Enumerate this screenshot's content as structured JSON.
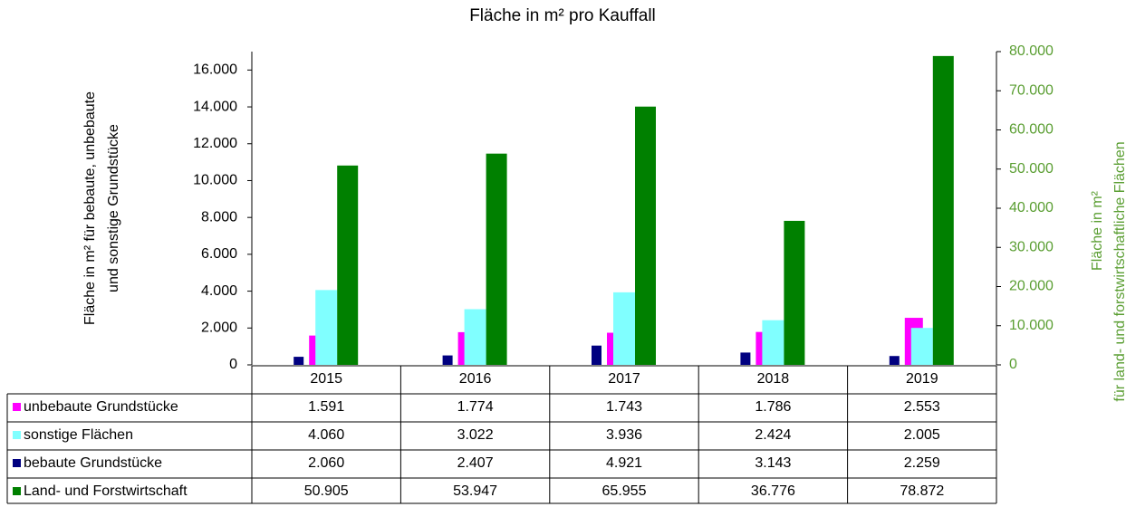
{
  "chart_data": {
    "type": "bar",
    "title": "Fläche in m² pro Kauffall",
    "y_label": [
      "Fläche in m² für bebaute, unbebaute",
      "und sonstige Grundstücke"
    ],
    "y2_label": [
      "Fläche in m²",
      "für  land- und forstwirtschaftliche  Flächen"
    ],
    "categories": [
      "2015",
      "2016",
      "2017",
      "2018",
      "2019"
    ],
    "series": [
      {
        "name": "unbebaute Grundstücke",
        "color": "#ff00ff",
        "values": [
          1591,
          1774,
          1743,
          1786,
          2553
        ],
        "value_labels": [
          "1.591",
          "1.774",
          "1.743",
          "1.786",
          "2.553"
        ]
      },
      {
        "name": "sonstige Flächen",
        "color": "#80ffff",
        "values": [
          4060,
          3022,
          3936,
          2424,
          2005
        ],
        "value_labels": [
          "4.060",
          "3.022",
          "3.936",
          "2.424",
          "2.005"
        ]
      },
      {
        "name": "bebaute Grundstücke",
        "color": "#000080",
        "axis": "y2",
        "values": [
          2060,
          2407,
          4921,
          3143,
          2259
        ],
        "value_labels": [
          "2.060",
          "2.407",
          "4.921",
          "3.143",
          "2.259"
        ]
      },
      {
        "name": "Land- und Forstwirtschaft",
        "color": "#008000",
        "axis": "y2",
        "values": [
          50905,
          53947,
          65955,
          36776,
          78872
        ],
        "value_labels": [
          "50.905",
          "53.947",
          "65.955",
          "36.776",
          "78.872"
        ]
      }
    ],
    "ylim": [
      0,
      17000
    ],
    "yticks": [
      0,
      {
        "value": 2000,
        "label": "2.000"
      },
      {
        "value": 4000,
        "label": "4.000"
      },
      {
        "value": 6000,
        "label": "6.000"
      },
      {
        "value": 8000,
        "label": "8.000"
      },
      {
        "value": 10000,
        "label": "10.000"
      },
      {
        "value": 12000,
        "label": "12.000"
      },
      {
        "value": 14000,
        "label": "14.000"
      },
      {
        "value": 16000,
        "label": "16.000"
      }
    ],
    "y2lim": [
      0,
      80000
    ],
    "y2ticks": [
      0,
      {
        "value": 10000,
        "label": "10.000"
      },
      {
        "value": 20000,
        "label": "20.000"
      },
      {
        "value": 30000,
        "label": "30.000"
      },
      {
        "value": 40000,
        "label": "40.000"
      },
      {
        "value": 50000,
        "label": "50.000"
      },
      {
        "value": 60000,
        "label": "60.000"
      },
      {
        "value": 70000,
        "label": "70.000"
      },
      {
        "value": 80000,
        "label": "80.000"
      }
    ],
    "y2_color": "#5a9e32",
    "grid": false
  }
}
